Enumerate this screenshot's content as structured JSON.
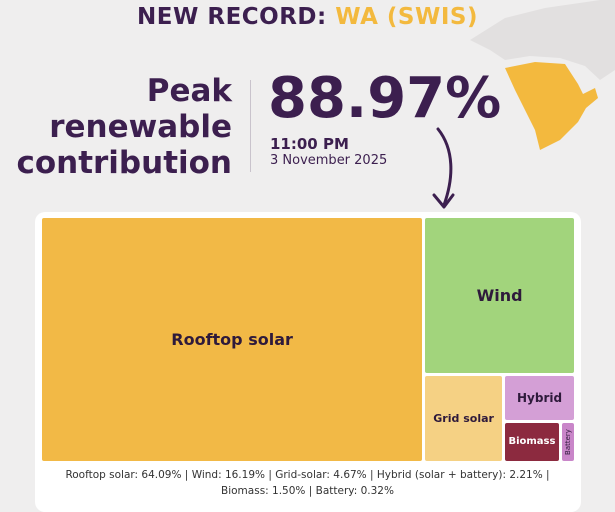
{
  "header": {
    "prefix": "NEW RECORD:",
    "region": "WA (SWIS)"
  },
  "peak": {
    "label_line1": "Peak",
    "label_line2": "renewable",
    "label_line3": "contribution",
    "value": "88.97%",
    "time": "11:00 PM",
    "date": "3 November 2025"
  },
  "colors": {
    "title": "#3c1f4f",
    "accent": "#f3b93e",
    "map": "#f3b93e",
    "rooftop_solar": "#f2b946",
    "wind": "#a2d47c",
    "grid_solar": "#f5d184",
    "hybrid": "#d49fd6",
    "biomass": "#8c2a3f",
    "battery": "#c986c9"
  },
  "chart_data": {
    "type": "treemap",
    "unit": "%",
    "series": [
      {
        "name": "Rooftop solar",
        "value": 64.09,
        "tile_label": "Rooftop solar",
        "legend_label": "Rooftop solar: 64.09%"
      },
      {
        "name": "Wind",
        "value": 16.19,
        "tile_label": "Wind",
        "legend_label": "Wind: 16.19%"
      },
      {
        "name": "Grid-solar",
        "value": 4.67,
        "tile_label": "Grid solar",
        "legend_label": "Grid-solar: 4.67%"
      },
      {
        "name": "Hybrid (solar + battery)",
        "value": 2.21,
        "tile_label": "Hybrid",
        "legend_label": "Hybrid (solar + battery): 2.21%"
      },
      {
        "name": "Biomass",
        "value": 1.5,
        "tile_label": "Biomass",
        "legend_label": "Biomass: 1.50%"
      },
      {
        "name": "Battery",
        "value": 0.32,
        "tile_label": "Battery",
        "legend_label": "Battery: 0.32%"
      }
    ]
  }
}
